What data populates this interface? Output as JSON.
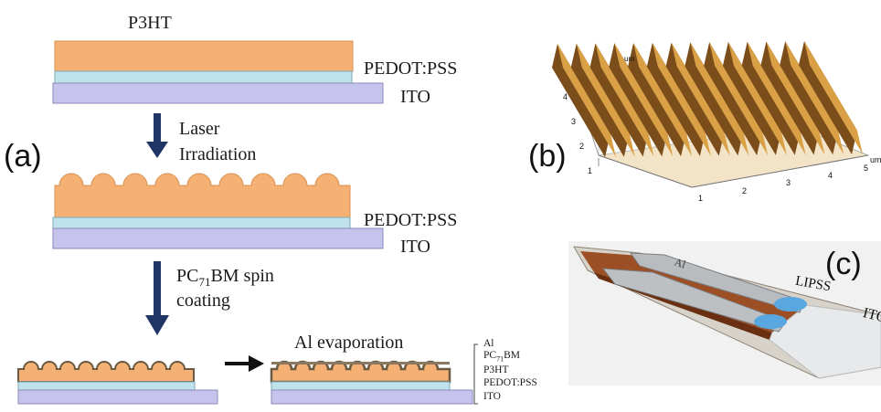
{
  "panels": {
    "a": "(a)",
    "b": "(b)",
    "c": "(c)"
  },
  "layers": {
    "p3ht": "P3HT",
    "pedot_top": "PEDOT:PSS",
    "ito_top": "ITO",
    "pedot_mid": "PEDOT:PSS",
    "ito_mid": "ITO"
  },
  "steps": {
    "laser_line1": "Laser",
    "laser_line2": "Irradiation",
    "pcbm_prefix": "PC",
    "pcbm_sub": "71",
    "pcbm_suffix": "BM spin",
    "pcbm_line2": "coating",
    "al_evap": "Al evaporation"
  },
  "stack_legend": {
    "al": "Al",
    "pcbm_prefix": "PC",
    "pcbm_sub": "71",
    "pcbm_suffix": "BM",
    "p3ht": "P3HT",
    "pedot": "PEDOT:PSS",
    "ito": "ITO"
  },
  "afm": {
    "unit": "um",
    "x_ticks": [
      "1",
      "2",
      "3",
      "4",
      "5"
    ],
    "y_ticks": [
      "1",
      "2",
      "3",
      "4"
    ]
  },
  "photo_labels": {
    "al": "Al",
    "lipss": "LIPSS",
    "ito": "ITO"
  },
  "colors": {
    "p3ht": "#F5B074",
    "pedot": "#BFE2EC",
    "ito": "#C6C4EC",
    "arrow": "#1F3566",
    "ridge": "#C98A3A"
  }
}
